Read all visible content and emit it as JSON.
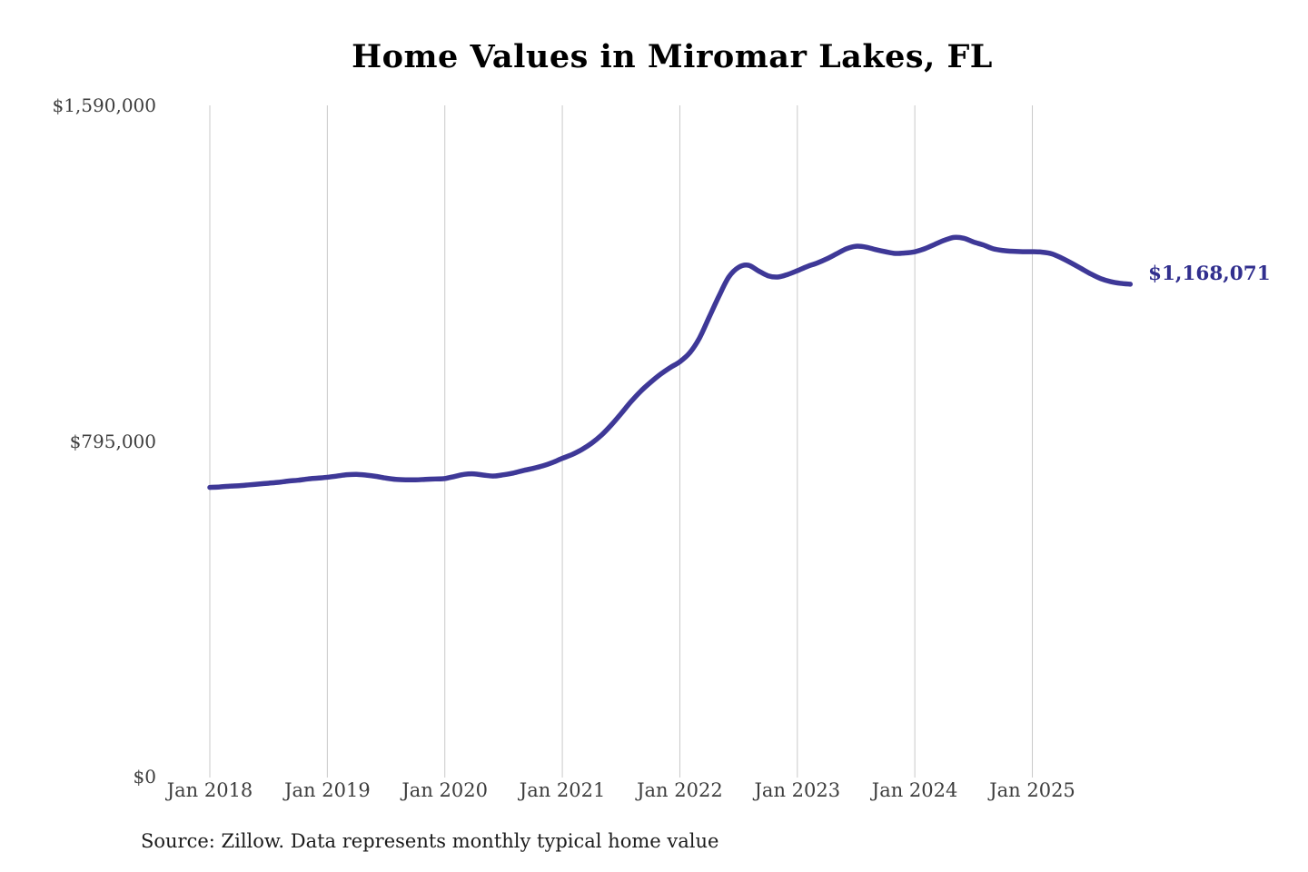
{
  "chart_data": {
    "type": "line",
    "title": "Home Values in Miromar Lakes, FL",
    "series_name": "Monthly typical home value",
    "x": [
      "2018-01",
      "2018-02",
      "2018-03",
      "2018-04",
      "2018-05",
      "2018-06",
      "2018-07",
      "2018-08",
      "2018-09",
      "2018-10",
      "2018-11",
      "2018-12",
      "2019-01",
      "2019-02",
      "2019-03",
      "2019-04",
      "2019-05",
      "2019-06",
      "2019-07",
      "2019-08",
      "2019-09",
      "2019-10",
      "2019-11",
      "2019-12",
      "2020-01",
      "2020-02",
      "2020-03",
      "2020-04",
      "2020-05",
      "2020-06",
      "2020-07",
      "2020-08",
      "2020-09",
      "2020-10",
      "2020-11",
      "2020-12",
      "2021-01",
      "2021-02",
      "2021-03",
      "2021-04",
      "2021-05",
      "2021-06",
      "2021-07",
      "2021-08",
      "2021-09",
      "2021-10",
      "2021-11",
      "2021-12",
      "2022-01",
      "2022-02",
      "2022-03",
      "2022-04",
      "2022-05",
      "2022-06",
      "2022-07",
      "2022-08",
      "2022-09",
      "2022-10",
      "2022-11",
      "2022-12",
      "2023-01",
      "2023-02",
      "2023-03",
      "2023-04",
      "2023-05",
      "2023-06",
      "2023-07",
      "2023-08",
      "2023-09",
      "2023-10",
      "2023-11",
      "2023-12",
      "2024-01",
      "2024-02",
      "2024-03",
      "2024-04",
      "2024-05",
      "2024-06",
      "2024-07",
      "2024-08",
      "2024-09",
      "2024-10",
      "2024-11",
      "2024-12",
      "2025-01",
      "2025-02",
      "2025-03",
      "2025-04",
      "2025-05",
      "2025-06",
      "2025-07",
      "2025-08",
      "2025-09",
      "2025-10",
      "2025-11"
    ],
    "values": [
      686000,
      687000,
      689000,
      690000,
      692000,
      694000,
      696000,
      698000,
      701000,
      703000,
      706000,
      708000,
      710000,
      713000,
      716000,
      717000,
      715000,
      712000,
      708000,
      705000,
      704000,
      704000,
      705000,
      706000,
      707000,
      712000,
      717000,
      718000,
      715000,
      713000,
      716000,
      720000,
      726000,
      731000,
      737000,
      745000,
      755000,
      764000,
      776000,
      791000,
      810000,
      834000,
      861000,
      889000,
      914000,
      935000,
      954000,
      970000,
      984000,
      1005000,
      1040000,
      1090000,
      1140000,
      1185000,
      1208000,
      1213000,
      1200000,
      1188000,
      1185000,
      1191000,
      1200000,
      1210000,
      1218000,
      1228000,
      1240000,
      1252000,
      1258000,
      1256000,
      1250000,
      1245000,
      1241000,
      1242000,
      1245000,
      1252000,
      1262000,
      1272000,
      1279000,
      1277000,
      1268000,
      1261000,
      1252000,
      1248000,
      1246000,
      1245000,
      1245000,
      1244000,
      1240000,
      1230000,
      1218000,
      1205000,
      1192000,
      1181000,
      1174000,
      1170000,
      1168071
    ],
    "final_value": 1168071,
    "end_label": "$1,168,071",
    "xlabel": "",
    "ylabel": "",
    "ylim": [
      0,
      1590000
    ],
    "y_ticks": [
      {
        "value": 0,
        "label": "$0"
      },
      {
        "value": 795000,
        "label": "$795,000"
      },
      {
        "value": 1590000,
        "label": "$1,590,000"
      }
    ],
    "x_ticks": [
      "Jan 2018",
      "Jan 2019",
      "Jan 2020",
      "Jan 2021",
      "Jan 2022",
      "Jan 2023",
      "Jan 2024",
      "Jan 2025"
    ],
    "grid": "vertical-only",
    "legend": "none",
    "source": "Source: Zillow. Data represents monthly typical home value",
    "colors": {
      "line": "#3e3897",
      "end_label": "#312f8e",
      "gridline": "#c9c9c9",
      "tick_text": "#3d3d3d",
      "title_text": "#000000",
      "source_text": "#1c1c1c",
      "background": "#ffffff"
    }
  }
}
